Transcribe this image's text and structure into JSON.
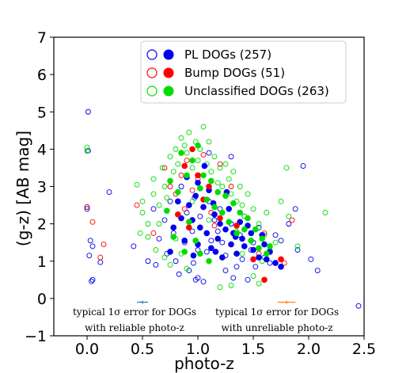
{
  "chart_data": {
    "type": "scatter",
    "title": "",
    "xlabel": "photo-z",
    "ylabel": "(g-z) [AB mag]",
    "xlim": [
      -0.3,
      2.5
    ],
    "ylim": [
      -1,
      7
    ],
    "xticks": [
      "0.0",
      "0.5",
      "1.0",
      "1.5",
      "2.0",
      "2.5"
    ],
    "yticks": [
      "−1",
      "0",
      "1",
      "2",
      "3",
      "4",
      "5",
      "6",
      "7"
    ],
    "grid": false,
    "legend_position": "top-right",
    "legend": [
      {
        "label": "PL DOGs (257)",
        "color": "#0000ee"
      },
      {
        "label": "Bump DOGs (51)",
        "color": "#ff0000"
      },
      {
        "label": "Unclassified DOGs (263)",
        "color": "#00dd00"
      }
    ],
    "series": [
      {
        "name": "PL DOGs (257)",
        "color": "#0000ee",
        "open": [
          [
            0.01,
            5.0
          ],
          [
            0.01,
            3.96
          ],
          [
            0.0,
            2.45
          ],
          [
            0.0,
            2.4
          ],
          [
            0.03,
            1.55
          ],
          [
            0.05,
            1.4
          ],
          [
            0.02,
            1.15
          ],
          [
            0.05,
            0.5
          ],
          [
            0.04,
            0.46
          ],
          [
            0.2,
            2.85
          ],
          [
            0.12,
            0.97
          ],
          [
            0.42,
            1.4
          ],
          [
            0.55,
            1.0
          ],
          [
            0.62,
            0.9
          ],
          [
            0.72,
            1.2
          ],
          [
            0.8,
            1.0
          ],
          [
            0.83,
            0.65
          ],
          [
            0.92,
            0.75
          ],
          [
            0.96,
            0.95
          ],
          [
            0.98,
            0.5
          ],
          [
            1.0,
            0.55
          ],
          [
            1.05,
            0.45
          ],
          [
            1.08,
            1.25
          ],
          [
            1.12,
            1.55
          ],
          [
            1.18,
            1.8
          ],
          [
            1.25,
            0.75
          ],
          [
            1.32,
            0.55
          ],
          [
            1.45,
            0.5
          ],
          [
            1.52,
            0.85
          ],
          [
            1.6,
            1.1
          ],
          [
            1.75,
            1.55
          ],
          [
            1.82,
            2.0
          ],
          [
            1.88,
            2.4
          ],
          [
            1.9,
            1.3
          ],
          [
            1.95,
            3.55
          ],
          [
            2.02,
            1.05
          ],
          [
            2.08,
            0.75
          ],
          [
            2.45,
            -0.2
          ],
          [
            0.7,
            2.1
          ],
          [
            0.75,
            2.6
          ],
          [
            0.85,
            3.0
          ],
          [
            0.9,
            2.3
          ],
          [
            0.95,
            1.8
          ],
          [
            1.02,
            2.2
          ],
          [
            1.1,
            2.6
          ],
          [
            1.2,
            2.4
          ],
          [
            1.3,
            2.0
          ],
          [
            1.38,
            1.7
          ],
          [
            1.42,
            2.2
          ],
          [
            1.5,
            1.5
          ],
          [
            1.55,
            1.9
          ],
          [
            1.65,
            0.95
          ],
          [
            1.7,
            1.7
          ],
          [
            1.3,
            3.8
          ],
          [
            1.1,
            3.9
          ],
          [
            0.88,
            1.5
          ],
          [
            0.78,
            1.75
          ],
          [
            1.0,
            1.3
          ],
          [
            1.25,
            1.15
          ],
          [
            1.4,
            1.05
          ],
          [
            1.48,
            1.3
          ],
          [
            1.35,
            0.85
          ],
          [
            0.65,
            1.6
          ],
          [
            0.6,
            2.4
          ],
          [
            1.15,
            2.1
          ],
          [
            0.97,
            2.7
          ],
          [
            1.22,
            1.5
          ]
        ],
        "filled": [
          [
            0.92,
            2.5
          ],
          [
            0.95,
            2.1
          ],
          [
            1.0,
            3.1
          ],
          [
            1.02,
            1.9
          ],
          [
            1.05,
            2.45
          ],
          [
            1.08,
            1.75
          ],
          [
            1.1,
            2.9
          ],
          [
            1.12,
            1.35
          ],
          [
            1.15,
            2.25
          ],
          [
            1.18,
            1.6
          ],
          [
            1.2,
            2.0
          ],
          [
            1.22,
            1.1
          ],
          [
            1.25,
            1.85
          ],
          [
            1.28,
            2.4
          ],
          [
            1.3,
            1.45
          ],
          [
            1.32,
            1.75
          ],
          [
            1.35,
            1.2
          ],
          [
            1.38,
            2.05
          ],
          [
            1.4,
            1.6
          ],
          [
            1.45,
            1.95
          ],
          [
            1.5,
            1.3
          ],
          [
            1.55,
            1.1
          ],
          [
            1.6,
            1.45
          ],
          [
            1.65,
            1.25
          ],
          [
            1.7,
            0.95
          ],
          [
            1.75,
            0.85
          ],
          [
            0.85,
            2.15
          ],
          [
            0.88,
            1.55
          ],
          [
            0.9,
            3.25
          ],
          [
            0.82,
            2.6
          ],
          [
            0.78,
            1.9
          ],
          [
            0.75,
            1.25
          ],
          [
            1.0,
            1.45
          ],
          [
            0.98,
            2.75
          ],
          [
            1.06,
            3.55
          ],
          [
            1.14,
            2.55
          ],
          [
            1.16,
            1.25
          ],
          [
            1.26,
            2.85
          ],
          [
            1.34,
            1.65
          ],
          [
            1.42,
            1.4
          ],
          [
            1.48,
            1.75
          ],
          [
            1.58,
            1.7
          ],
          [
            1.62,
            1.05
          ],
          [
            0.96,
            1.15
          ]
        ]
      },
      {
        "name": "Bump DOGs (51)",
        "color": "#ff0000",
        "open": [
          [
            0.0,
            2.45
          ],
          [
            0.05,
            2.05
          ],
          [
            0.12,
            1.1
          ],
          [
            0.15,
            1.45
          ],
          [
            0.45,
            2.5
          ],
          [
            0.7,
            3.5
          ],
          [
            0.75,
            3.0
          ],
          [
            0.8,
            2.8
          ],
          [
            0.85,
            3.3
          ],
          [
            0.9,
            3.7
          ],
          [
            0.95,
            2.9
          ],
          [
            1.0,
            3.2
          ],
          [
            1.05,
            3.85
          ],
          [
            1.12,
            2.3
          ],
          [
            1.2,
            3.6
          ],
          [
            1.3,
            3.0
          ],
          [
            1.48,
            1.55
          ],
          [
            1.55,
            1.2
          ],
          [
            1.6,
            1.75
          ],
          [
            1.78,
            0.95
          ],
          [
            1.85,
            2.1
          ],
          [
            0.6,
            1.75
          ],
          [
            0.88,
            2.4
          ],
          [
            1.15,
            1.95
          ]
        ],
        "filled": [
          [
            0.95,
            4.0
          ],
          [
            1.0,
            3.3
          ],
          [
            1.05,
            2.65
          ],
          [
            1.1,
            3.0
          ],
          [
            1.2,
            2.15
          ],
          [
            1.35,
            1.95
          ],
          [
            1.5,
            1.05
          ],
          [
            1.6,
            0.5
          ],
          [
            1.75,
            1.05
          ],
          [
            0.82,
            2.25
          ],
          [
            0.88,
            3.55
          ],
          [
            0.92,
            1.9
          ]
        ]
      },
      {
        "name": "Unclassified DOGs (263)",
        "color": "#00dd00",
        "open": [
          [
            0.0,
            4.05
          ],
          [
            0.0,
            3.95
          ],
          [
            0.45,
            3.05
          ],
          [
            0.5,
            2.6
          ],
          [
            0.5,
            2.3
          ],
          [
            0.48,
            1.75
          ],
          [
            0.55,
            2.0
          ],
          [
            0.55,
            1.65
          ],
          [
            0.6,
            3.2
          ],
          [
            0.6,
            2.8
          ],
          [
            0.65,
            2.5
          ],
          [
            0.65,
            2.0
          ],
          [
            0.68,
            3.5
          ],
          [
            0.7,
            3.0
          ],
          [
            0.72,
            2.7
          ],
          [
            0.75,
            3.8
          ],
          [
            0.78,
            3.4
          ],
          [
            0.8,
            4.0
          ],
          [
            0.82,
            3.6
          ],
          [
            0.85,
            4.3
          ],
          [
            0.88,
            4.1
          ],
          [
            0.9,
            3.9
          ],
          [
            0.92,
            4.45
          ],
          [
            0.95,
            3.5
          ],
          [
            0.98,
            4.2
          ],
          [
            1.0,
            3.7
          ],
          [
            1.02,
            4.0
          ],
          [
            1.05,
            4.6
          ],
          [
            1.08,
            3.6
          ],
          [
            1.1,
            4.2
          ],
          [
            1.12,
            3.4
          ],
          [
            1.15,
            3.8
          ],
          [
            1.18,
            3.1
          ],
          [
            1.2,
            3.5
          ],
          [
            1.22,
            3.0
          ],
          [
            1.25,
            3.6
          ],
          [
            1.28,
            3.2
          ],
          [
            1.3,
            2.8
          ],
          [
            1.32,
            3.4
          ],
          [
            1.35,
            2.6
          ],
          [
            1.38,
            3.0
          ],
          [
            1.4,
            2.5
          ],
          [
            1.42,
            2.2
          ],
          [
            1.45,
            2.8
          ],
          [
            1.5,
            2.4
          ],
          [
            1.55,
            2.0
          ],
          [
            1.6,
            1.7
          ],
          [
            1.65,
            1.3
          ],
          [
            1.7,
            1.5
          ],
          [
            1.75,
            2.6
          ],
          [
            1.8,
            3.5
          ],
          [
            1.82,
            2.2
          ],
          [
            1.9,
            1.4
          ],
          [
            2.15,
            2.3
          ],
          [
            0.62,
            1.3
          ],
          [
            0.7,
            1.1
          ],
          [
            0.75,
            0.9
          ],
          [
            0.8,
            1.6
          ],
          [
            0.85,
            1.2
          ],
          [
            0.9,
            0.8
          ],
          [
            1.35,
            1.8
          ],
          [
            1.4,
            1.2
          ],
          [
            1.5,
            0.6
          ],
          [
            1.55,
            0.4
          ],
          [
            1.2,
            0.3
          ],
          [
            1.3,
            0.35
          ],
          [
            1.62,
            2.3
          ],
          [
            1.58,
            1.0
          ],
          [
            1.1,
            2.1
          ],
          [
            0.95,
            2.6
          ]
        ],
        "filled": [
          [
            0.85,
            3.9
          ],
          [
            0.9,
            3.3
          ],
          [
            0.95,
            3.7
          ],
          [
            1.0,
            4.1
          ],
          [
            1.02,
            2.95
          ],
          [
            1.05,
            3.3
          ],
          [
            1.08,
            2.65
          ],
          [
            1.12,
            3.15
          ],
          [
            1.15,
            2.45
          ],
          [
            1.18,
            2.85
          ],
          [
            1.22,
            2.3
          ],
          [
            1.25,
            2.75
          ],
          [
            1.28,
            2.05
          ],
          [
            1.32,
            2.55
          ],
          [
            1.35,
            1.75
          ],
          [
            1.38,
            2.3
          ],
          [
            1.42,
            1.85
          ],
          [
            1.45,
            2.15
          ],
          [
            1.48,
            1.55
          ],
          [
            1.52,
            1.85
          ],
          [
            1.55,
            1.35
          ],
          [
            1.58,
            1.6
          ],
          [
            1.62,
            1.2
          ],
          [
            1.65,
            1.4
          ],
          [
            0.72,
            2.35
          ],
          [
            0.75,
            3.15
          ],
          [
            0.78,
            1.65
          ],
          [
            0.82,
            2.85
          ],
          [
            0.88,
            1.25
          ],
          [
            0.92,
            2.05
          ],
          [
            0.98,
            1.55
          ],
          [
            1.02,
            1.2
          ],
          [
            1.1,
            1.0
          ]
        ]
      }
    ],
    "error_bars": [
      {
        "x": 0.5,
        "y": -0.1,
        "xerr": 0.05,
        "yerr": 0.04,
        "color": "#1f77b4"
      },
      {
        "x": 1.8,
        "y": -0.1,
        "xerr": 0.08,
        "yerr": 0.04,
        "color": "#ff7f0e"
      }
    ],
    "annotations": [
      {
        "lines": [
          "typical 1σ error for DOGs",
          "with reliable photo-z"
        ]
      },
      {
        "lines": [
          "typical 1σ error for DOGs",
          "with unreliable photo-z"
        ]
      }
    ]
  }
}
